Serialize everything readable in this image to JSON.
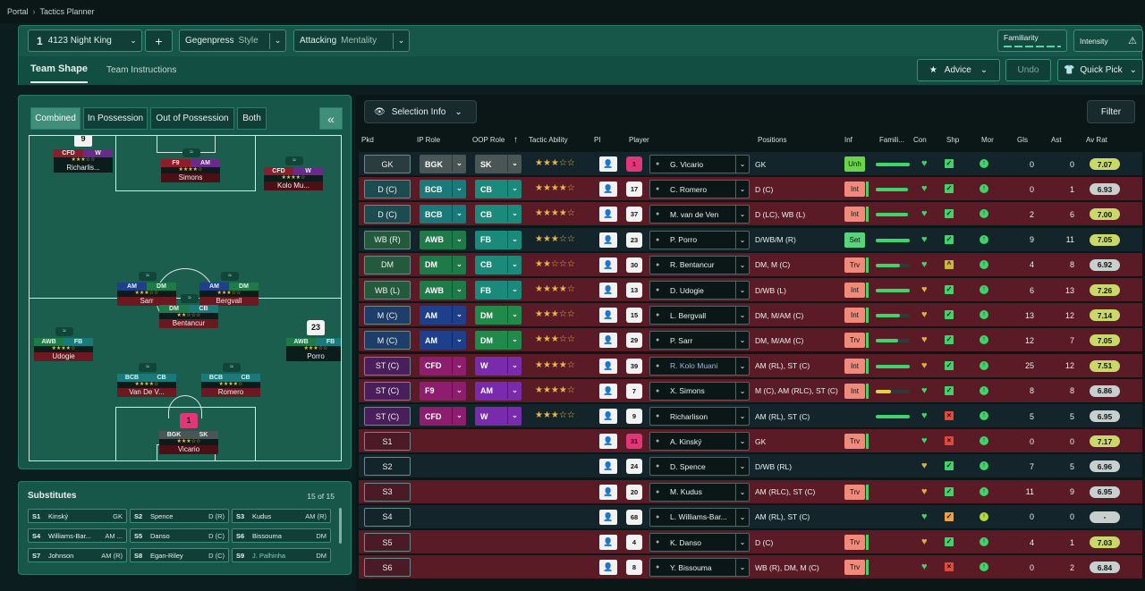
{
  "breadcrumb": {
    "root": "Portal",
    "current": "Tactics Planner"
  },
  "header": {
    "tactic_slot": "1",
    "tactic_name": "4123 Night King",
    "add": "+",
    "style_value": "Gegenpress",
    "style_label": "Style",
    "mentality_value": "Attacking",
    "mentality_label": "Mentality",
    "familiarity_label": "Familiarity",
    "intensity_label": "Intensity"
  },
  "tabs": {
    "team_shape": "Team Shape",
    "team_instructions": "Team Instructions"
  },
  "actions": {
    "advice": "Advice",
    "undo": "Undo",
    "quick_pick": "Quick Pick"
  },
  "pitch_view": {
    "combined": "Combined",
    "in_possession": "In Possession",
    "out_of_possession": "Out of Possession",
    "both": "Both",
    "collapse": "«"
  },
  "pitch_players": [
    {
      "num": "9",
      "ip": "CFD",
      "oop": "W",
      "stars": "★★★☆☆",
      "name": "Richarlis...",
      "ipc": "#8e1d2b",
      "oopc": "#6a2a8c"
    },
    {
      "num": "",
      "ip": "F9",
      "oop": "AM",
      "stars": "★★★★☆",
      "name": "Simons",
      "ipc": "#8e1d2b",
      "oopc": "#6a2a8c"
    },
    {
      "num": "",
      "ip": "CFD",
      "oop": "W",
      "stars": "★★★★☆",
      "name": "Kolo Mu...",
      "ipc": "#8e1d2b",
      "oopc": "#6a2a8c"
    },
    {
      "num": "",
      "ip": "AM",
      "oop": "DM",
      "stars": "★★★☆☆",
      "name": "Sarr",
      "ipc": "#1e3f8a",
      "oopc": "#1f7a4a"
    },
    {
      "num": "",
      "ip": "AM",
      "oop": "DM",
      "stars": "★★★☆☆",
      "name": "Bergvall",
      "ipc": "#1e3f8a",
      "oopc": "#1f7a4a"
    },
    {
      "num": "",
      "ip": "DM",
      "oop": "CB",
      "stars": "★★☆☆☆",
      "name": "Bentancur",
      "ipc": "#1f7a4a",
      "oopc": "#1a7a7a"
    },
    {
      "num": "",
      "ip": "AWB",
      "oop": "FB",
      "stars": "★★★★☆",
      "name": "Udogie",
      "ipc": "#1f7a4a",
      "oopc": "#1a7a7a"
    },
    {
      "num": "23",
      "ip": "AWB",
      "oop": "FB",
      "stars": "★★★☆☆",
      "name": "Porro",
      "ipc": "#1f7a4a",
      "oopc": "#1a7a7a"
    },
    {
      "num": "",
      "ip": "BCB",
      "oop": "CB",
      "stars": "★★★★☆",
      "name": "Van De V...",
      "ipc": "#1a7a7a",
      "oopc": "#1a7a7a"
    },
    {
      "num": "",
      "ip": "BCB",
      "oop": "CB",
      "stars": "★★★★☆",
      "name": "Romero",
      "ipc": "#1a7a7a",
      "oopc": "#1a7a7a"
    },
    {
      "num": "1",
      "ip": "BGK",
      "oop": "SK",
      "stars": "★★★☆☆",
      "name": "Vicario",
      "ipc": "#4a5656",
      "oopc": "#4a5656"
    }
  ],
  "substitutes": {
    "title": "Substitutes",
    "count": "15 of 15",
    "items": [
      {
        "k": "S1",
        "n": "Kinský",
        "p": "GK"
      },
      {
        "k": "S2",
        "n": "Spence",
        "p": "D (R)"
      },
      {
        "k": "S3",
        "n": "Kudus",
        "p": "AM (R)"
      },
      {
        "k": "S4",
        "n": "Williams-Bar...",
        "p": "AM ..."
      },
      {
        "k": "S5",
        "n": "Danso",
        "p": "D (C)"
      },
      {
        "k": "S6",
        "n": "Bissouma",
        "p": "DM"
      },
      {
        "k": "S7",
        "n": "Johnson",
        "p": "AM (R)"
      },
      {
        "k": "S8",
        "n": "Egan-Riley",
        "p": "D (C)"
      },
      {
        "k": "S9",
        "n": "J. Palhinha",
        "p": "DM"
      }
    ]
  },
  "table": {
    "selection_info": "Selection Info",
    "filter": "Filter",
    "columns": {
      "pkd": "Pkd",
      "ip_role": "IP Role",
      "oop_role": "OOP Role",
      "tactic_ability": "Tactic Ability",
      "pi": "PI",
      "player": "Player",
      "positions": "Positions",
      "inf": "Inf",
      "famili": "Famili...",
      "con": "Con",
      "shp": "Shp",
      "mor": "Mor",
      "gls": "Gls",
      "ast": "Ast",
      "avrat": "Av Rat"
    },
    "rows": [
      {
        "pkd": "GK",
        "ip": "BGK",
        "oop": "SK",
        "stars": "★★★☆☆",
        "shirt": "1",
        "player": "G. Vicario",
        "pos": "GK",
        "inf": "Unh",
        "gls": "0",
        "ast": "0",
        "rat": "7.07"
      },
      {
        "pkd": "D (C)",
        "ip": "BCB",
        "oop": "CB",
        "stars": "★★★★☆",
        "shirt": "17",
        "player": "C. Romero",
        "pos": "D (C)",
        "inf": "Int",
        "gls": "0",
        "ast": "1",
        "rat": "6.93"
      },
      {
        "pkd": "D (C)",
        "ip": "BCB",
        "oop": "CB",
        "stars": "★★★★☆",
        "shirt": "37",
        "player": "M. van de Ven",
        "pos": "D (LC), WB (L)",
        "inf": "Int",
        "gls": "2",
        "ast": "6",
        "rat": "7.00"
      },
      {
        "pkd": "WB (R)",
        "ip": "AWB",
        "oop": "FB",
        "stars": "★★★☆☆",
        "shirt": "23",
        "player": "P. Porro",
        "pos": "D/WB/M (R)",
        "inf": "Set",
        "gls": "9",
        "ast": "11",
        "rat": "7.05"
      },
      {
        "pkd": "DM",
        "ip": "DM",
        "oop": "CB",
        "stars": "★★☆☆☆",
        "shirt": "30",
        "player": "R. Bentancur",
        "pos": "DM, M (C)",
        "inf": "Trv",
        "gls": "4",
        "ast": "8",
        "rat": "6.92"
      },
      {
        "pkd": "WB (L)",
        "ip": "AWB",
        "oop": "FB",
        "stars": "★★★★☆",
        "shirt": "13",
        "player": "D. Udogie",
        "pos": "D/WB (L)",
        "inf": "Int",
        "gls": "6",
        "ast": "13",
        "rat": "7.26"
      },
      {
        "pkd": "M (C)",
        "ip": "AM",
        "oop": "DM",
        "stars": "★★★☆☆",
        "shirt": "15",
        "player": "L. Bergvall",
        "pos": "DM, M/AM (C)",
        "inf": "Int",
        "gls": "13",
        "ast": "12",
        "rat": "7.14"
      },
      {
        "pkd": "M (C)",
        "ip": "AM",
        "oop": "DM",
        "stars": "★★★☆☆",
        "shirt": "29",
        "player": "P. Sarr",
        "pos": "DM, M/AM (C)",
        "inf": "Trv",
        "gls": "12",
        "ast": "7",
        "rat": "7.05"
      },
      {
        "pkd": "ST (C)",
        "ip": "CFD",
        "oop": "W",
        "stars": "★★★★☆",
        "shirt": "39",
        "player": "R. Kolo Muani",
        "pos": "AM (RL), ST (C)",
        "inf": "Int",
        "gls": "25",
        "ast": "12",
        "rat": "7.51"
      },
      {
        "pkd": "ST (C)",
        "ip": "F9",
        "oop": "AM",
        "stars": "★★★★☆",
        "shirt": "7",
        "player": "X. Simons",
        "pos": "M (C), AM (RLC), ST (C)",
        "inf": "Int",
        "gls": "8",
        "ast": "8",
        "rat": "6.86"
      },
      {
        "pkd": "ST (C)",
        "ip": "CFD",
        "oop": "W",
        "stars": "★★★☆☆",
        "shirt": "9",
        "player": "Richarlison",
        "pos": "AM (RL), ST (C)",
        "inf": "",
        "gls": "5",
        "ast": "5",
        "rat": "6.95"
      },
      {
        "pkd": "S1",
        "ip": "",
        "oop": "",
        "stars": "",
        "shirt": "31",
        "player": "A. Kinský",
        "pos": "GK",
        "inf": "Trv",
        "gls": "0",
        "ast": "0",
        "rat": "7.17"
      },
      {
        "pkd": "S2",
        "ip": "",
        "oop": "",
        "stars": "",
        "shirt": "24",
        "player": "D. Spence",
        "pos": "D/WB (RL)",
        "inf": "",
        "gls": "7",
        "ast": "5",
        "rat": "6.96"
      },
      {
        "pkd": "S3",
        "ip": "",
        "oop": "",
        "stars": "",
        "shirt": "20",
        "player": "M. Kudus",
        "pos": "AM (RLC), ST (C)",
        "inf": "Trv",
        "gls": "11",
        "ast": "9",
        "rat": "6.95"
      },
      {
        "pkd": "S4",
        "ip": "",
        "oop": "",
        "stars": "",
        "shirt": "68",
        "player": "L. Williams-Bar...",
        "pos": "AM (RL), ST (C)",
        "inf": "",
        "gls": "0",
        "ast": "0",
        "rat": "-"
      },
      {
        "pkd": "S5",
        "ip": "",
        "oop": "",
        "stars": "",
        "shirt": "4",
        "player": "K. Danso",
        "pos": "D (C)",
        "inf": "Trv",
        "gls": "4",
        "ast": "1",
        "rat": "7.03"
      },
      {
        "pkd": "S6",
        "ip": "",
        "oop": "",
        "stars": "",
        "shirt": "8",
        "player": "Y. Bissouma",
        "pos": "WB (R), DM, M (C)",
        "inf": "Trv",
        "gls": "0",
        "ast": "2",
        "rat": "6.84"
      }
    ]
  }
}
